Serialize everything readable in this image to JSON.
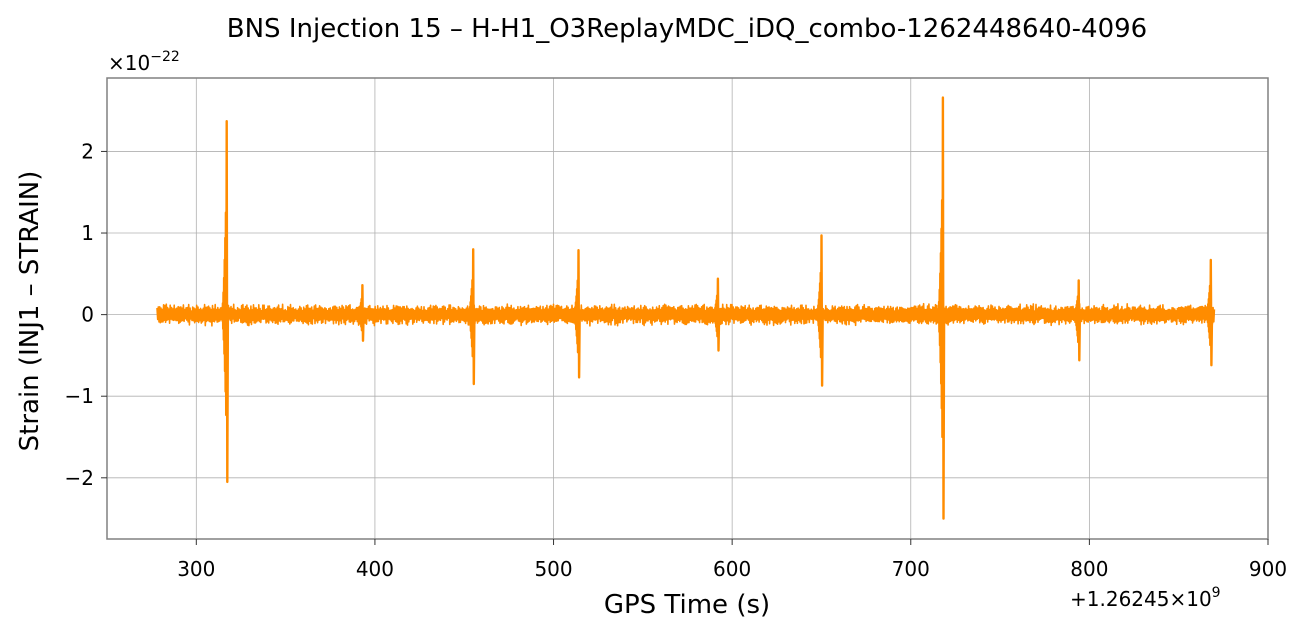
{
  "chart_data": {
    "type": "line",
    "title": "BNS Injection 15 – H-H1_O3ReplayMDC_iDQ_combo-1262448640-4096",
    "xlabel": "GPS Time (s)",
    "ylabel": "Strain (INJ1 – STRAIN)",
    "x_offset_label": "+1.26245×10",
    "x_offset_exp": "9",
    "y_multiplier_label": "×10",
    "y_multiplier_exp": "−22",
    "xlim": [
      250,
      900
    ],
    "ylim": [
      -2.75,
      2.9
    ],
    "xticks": [
      300,
      400,
      500,
      600,
      700,
      800,
      900
    ],
    "yticks": [
      -2,
      -1,
      0,
      1,
      2
    ],
    "ytick_labels": [
      "−2",
      "−1",
      "0",
      "1",
      "2"
    ],
    "grid": true,
    "series_color": "#ff8c00",
    "x_range": [
      278,
      870
    ],
    "noise_amplitude": 0.12,
    "spikes": [
      {
        "x": 317,
        "max": 2.37,
        "min": -2.05
      },
      {
        "x": 393,
        "max": 0.36,
        "min": -0.32
      },
      {
        "x": 455,
        "max": 0.8,
        "min": -0.85
      },
      {
        "x": 514,
        "max": 0.79,
        "min": -0.77
      },
      {
        "x": 592,
        "max": 0.44,
        "min": -0.44
      },
      {
        "x": 650,
        "max": 0.97,
        "min": -0.87
      },
      {
        "x": 718,
        "max": 2.66,
        "min": -2.5
      },
      {
        "x": 794,
        "max": 0.42,
        "min": -0.56
      },
      {
        "x": 868,
        "max": 0.67,
        "min": -0.62
      }
    ]
  }
}
